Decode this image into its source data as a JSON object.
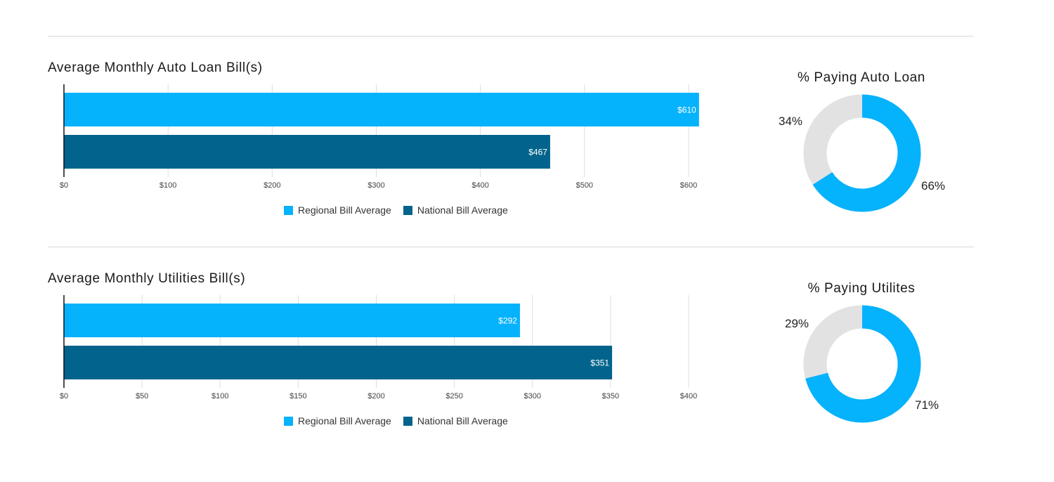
{
  "colors": {
    "regional": "#05b2fc",
    "national": "#02648c",
    "grid": "#dddddd",
    "pie_rest": "#e2e2e2"
  },
  "legend": {
    "regional": "Regional Bill Average",
    "national": "National Bill Average"
  },
  "chart_data": [
    {
      "type": "bar",
      "orientation": "horizontal",
      "title": "Average Monthly Auto Loan Bill(s)",
      "series": [
        {
          "name": "Regional Bill Average",
          "values": [
            610
          ],
          "label": "$610"
        },
        {
          "name": "National Bill Average",
          "values": [
            467
          ],
          "label": "$467"
        }
      ],
      "xlim": [
        0,
        600
      ],
      "ticks": [
        {
          "value": 0,
          "label": "$0"
        },
        {
          "value": 100,
          "label": "$100"
        },
        {
          "value": 200,
          "label": "$200"
        },
        {
          "value": 300,
          "label": "$300"
        },
        {
          "value": 400,
          "label": "$400"
        },
        {
          "value": 500,
          "label": "$500"
        },
        {
          "value": 600,
          "label": "$600"
        }
      ],
      "grid": true,
      "legend_position": "bottom"
    },
    {
      "type": "pie",
      "title": "% Paying Auto Loan",
      "slices": [
        {
          "label": "66%",
          "value": 66
        },
        {
          "label": "34%",
          "value": 34
        }
      ]
    },
    {
      "type": "bar",
      "orientation": "horizontal",
      "title": "Average Monthly Utilities Bill(s)",
      "series": [
        {
          "name": "Regional Bill Average",
          "values": [
            292
          ],
          "label": "$292"
        },
        {
          "name": "National Bill Average",
          "values": [
            351
          ],
          "label": "$351"
        }
      ],
      "xlim": [
        0,
        400
      ],
      "ticks": [
        {
          "value": 0,
          "label": "$0"
        },
        {
          "value": 50,
          "label": "$50"
        },
        {
          "value": 100,
          "label": "$100"
        },
        {
          "value": 150,
          "label": "$150"
        },
        {
          "value": 200,
          "label": "$200"
        },
        {
          "value": 250,
          "label": "$250"
        },
        {
          "value": 300,
          "label": "$300"
        },
        {
          "value": 350,
          "label": "$350"
        },
        {
          "value": 400,
          "label": "$400"
        }
      ],
      "grid": true,
      "legend_position": "bottom"
    },
    {
      "type": "pie",
      "title": "% Paying Utilites",
      "slices": [
        {
          "label": "71%",
          "value": 71
        },
        {
          "label": "29%",
          "value": 29
        }
      ]
    }
  ]
}
